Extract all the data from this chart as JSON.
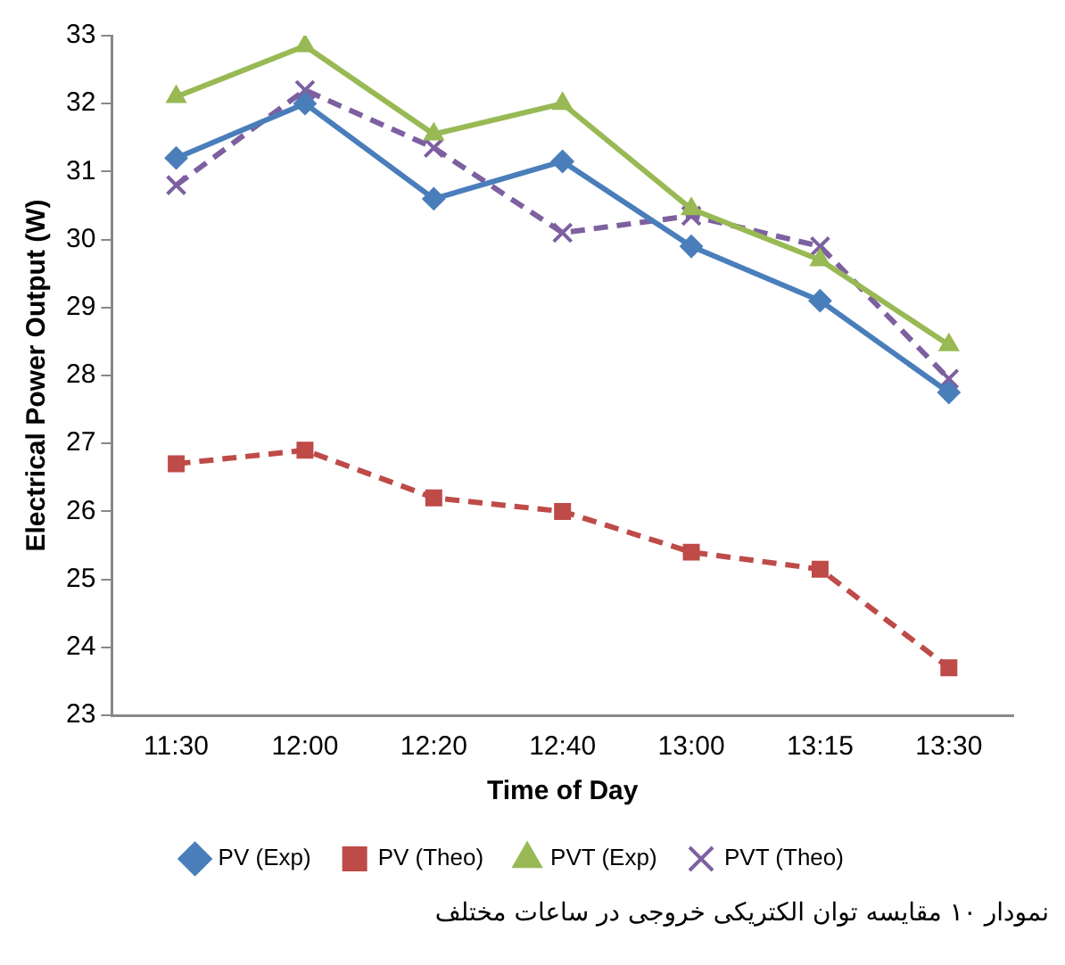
{
  "chart_data": {
    "type": "line",
    "xlabel": "Time of Day",
    "ylabel": "Electrical Power Output (W)",
    "categories": [
      "11:30",
      "12:00",
      "12:20",
      "12:40",
      "13:00",
      "13:15",
      "13:30"
    ],
    "series": [
      {
        "name": "PV (Exp)",
        "color": "#4a7ebb",
        "marker": "diamond",
        "line_style": "solid",
        "values": [
          31.2,
          32.0,
          30.6,
          31.15,
          29.9,
          29.1,
          27.75
        ]
      },
      {
        "name": "PV (Theo)",
        "color": "#be4b48",
        "marker": "square",
        "line_style": "dashed",
        "values": [
          26.7,
          26.9,
          26.2,
          26.0,
          25.4,
          25.15,
          23.7
        ]
      },
      {
        "name": "PVT (Exp)",
        "color": "#98b954",
        "marker": "triangle",
        "line_style": "solid",
        "values": [
          32.1,
          32.85,
          31.55,
          32.0,
          30.45,
          29.7,
          28.45
        ]
      },
      {
        "name": "PVT (Theo)",
        "color": "#7d60a0",
        "marker": "cross",
        "line_style": "dashed",
        "values": [
          30.8,
          32.2,
          31.35,
          30.1,
          30.35,
          29.9,
          27.95
        ]
      }
    ],
    "ylim": [
      23,
      33
    ],
    "yticks": [
      23,
      24,
      25,
      26,
      27,
      28,
      29,
      30,
      31,
      32,
      33
    ],
    "grid": false,
    "legend": "bottom",
    "annotations": [
      "نمودار ۱۰ مقایسه توان الکتریکی خروجی در ساعات مختلف"
    ]
  }
}
